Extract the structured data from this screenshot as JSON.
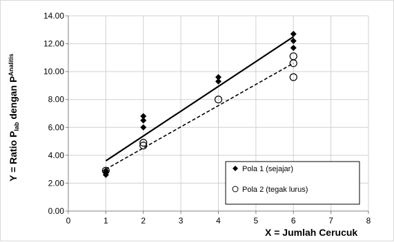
{
  "chart_data": {
    "type": "scatter",
    "xlabel": "X = Jumlah Cerucuk",
    "ylabel": {
      "prefix": "Y = Ratio P",
      "sub1": "lab",
      "middle": " dengan P",
      "sub2": "Analitis"
    },
    "xlim": [
      0,
      8
    ],
    "ylim": [
      0,
      14
    ],
    "x_ticks": [
      "0",
      "1",
      "2",
      "3",
      "4",
      "5",
      "6",
      "7",
      "8"
    ],
    "y_ticks": [
      "0.00",
      "2.00",
      "4.00",
      "6.00",
      "8.00",
      "10.00",
      "12.00",
      "14.00"
    ],
    "grid": true,
    "legend_position": "bottom-right",
    "series": [
      {
        "name": "Pola 1 (sejajar)",
        "marker": "diamond",
        "color": "#000000",
        "points": [
          [
            1,
            2.6
          ],
          [
            1,
            2.8
          ],
          [
            1,
            2.9
          ],
          [
            2,
            6.0
          ],
          [
            2,
            6.5
          ],
          [
            2,
            6.8
          ],
          [
            4,
            9.3
          ],
          [
            4,
            9.6
          ],
          [
            6,
            11.7
          ],
          [
            6,
            12.2
          ],
          [
            6,
            12.7
          ]
        ],
        "trendline": {
          "x": [
            1,
            6
          ],
          "y": [
            3.6,
            12.5
          ],
          "style": "solid"
        }
      },
      {
        "name": "Pola 2 (tegak lurus)",
        "marker": "open-circle",
        "color": "#000000",
        "points": [
          [
            1,
            2.9
          ],
          [
            2,
            4.7
          ],
          [
            2,
            4.9
          ],
          [
            4,
            8.0
          ],
          [
            6,
            9.6
          ],
          [
            6,
            10.6
          ],
          [
            6,
            11.1
          ]
        ],
        "trendline": {
          "x": [
            1,
            6
          ],
          "y": [
            3.0,
            10.6
          ],
          "style": "dashed"
        }
      }
    ]
  }
}
